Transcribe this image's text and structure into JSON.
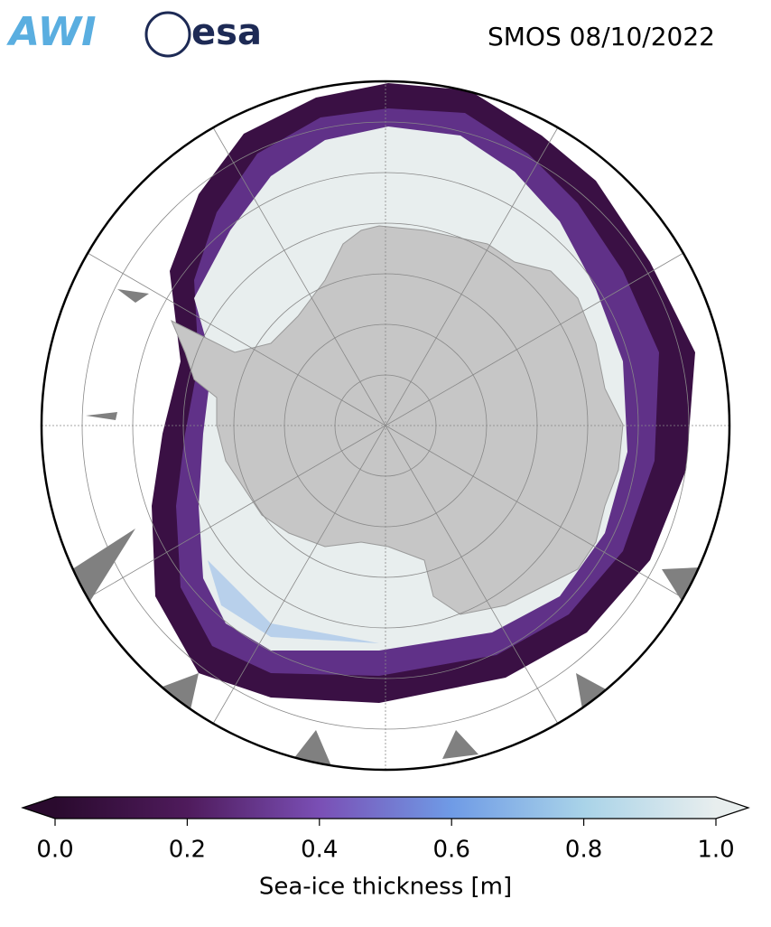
{
  "header": {
    "logos": [
      "AWI",
      "esa"
    ],
    "title": "SMOS 08/10/2022"
  },
  "colorbar": {
    "lim": [
      0,
      1
    ],
    "ticks": [
      {
        "value": 0,
        "label": "0.0"
      },
      0.2,
      0.4,
      0.6,
      0.8,
      {
        "value": 1,
        "label": "1.0"
      }
    ],
    "label": "Sea-ice thickness [m]",
    "colors": [
      "#2a0a2e",
      "#4f1b5c",
      "#7a4fb5",
      "#6f9be6",
      "#a9d3e8",
      "#e8eeee"
    ]
  }
}
